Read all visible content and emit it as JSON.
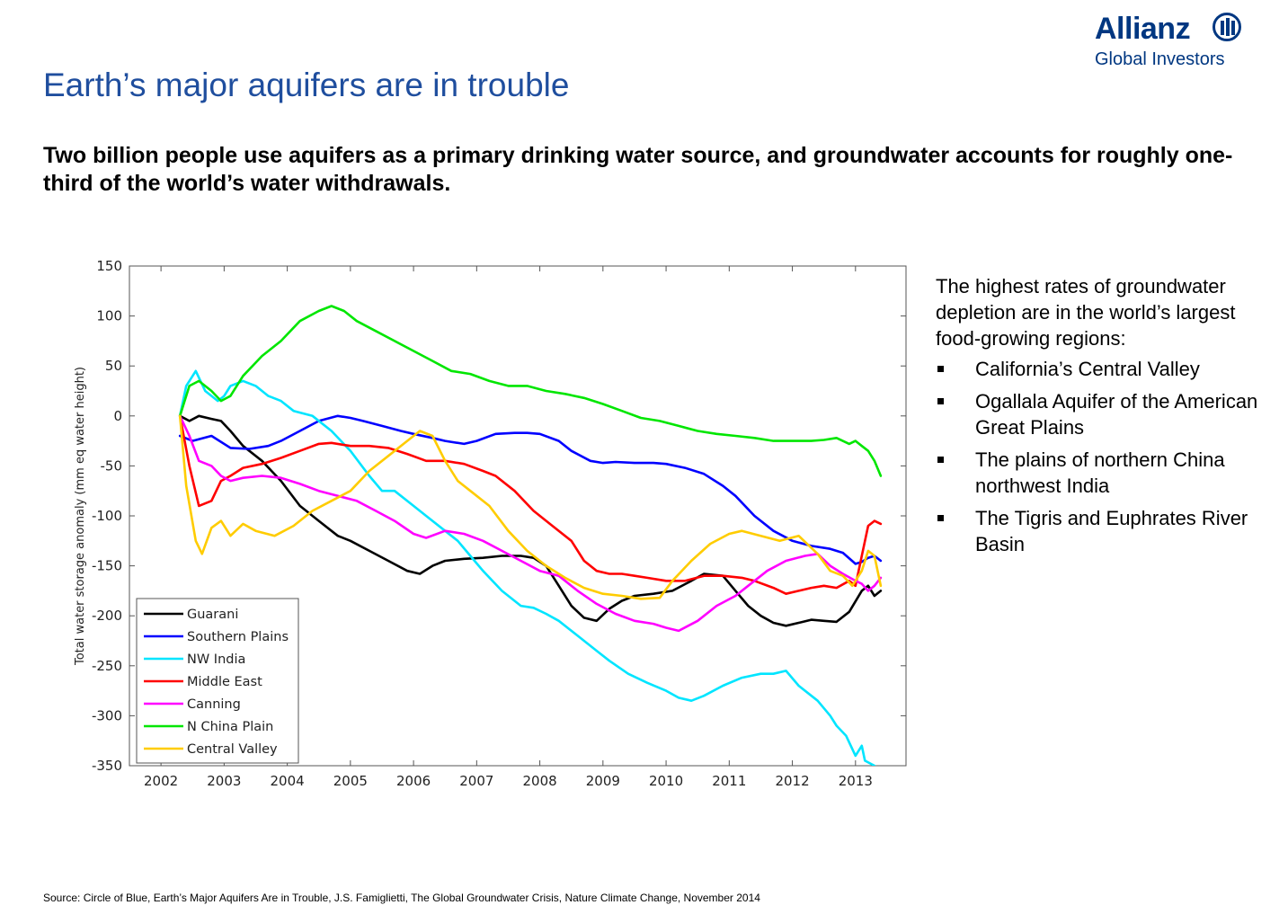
{
  "logo": {
    "brand": "Allianz",
    "sub": "Global Investors",
    "color": "#003781"
  },
  "title": "Earth’s major aquifers are in trouble",
  "subtitle": "Two billion people use aquifers as a primary drinking water source, and groundwater accounts for roughly one-third of the world’s water withdrawals.",
  "side": {
    "intro": "The highest rates of groundwater depletion are in the world’s largest food-growing regions:",
    "bullets": [
      "California’s Central Valley",
      "Ogallala Aquifer of the American Great Plains",
      "The plains of northern China northwest India",
      "The Tigris and Euphrates River Basin"
    ]
  },
  "source": "Source: Circle of Blue, Earth’s Major Aquifers Are in Trouble, J.S. Famiglietti, The Global Groundwater Crisis, Nature Climate Change, November 2014",
  "chart_data": {
    "type": "line",
    "title": "",
    "xlabel": "",
    "ylabel": "Total water storage anomaly (mm eq water height)",
    "xlim": [
      2001.5,
      2013.8
    ],
    "ylim": [
      -350,
      150
    ],
    "xticks": [
      2002,
      2003,
      2004,
      2005,
      2006,
      2007,
      2008,
      2009,
      2010,
      2011,
      2012,
      2013
    ],
    "yticks": [
      150,
      100,
      50,
      0,
      -50,
      -100,
      -150,
      -200,
      -250,
      -300,
      -350
    ],
    "grid": false,
    "legend_position": "bottom-left",
    "series": [
      {
        "name": "Guarani",
        "color": "#000000",
        "x": [
          2002.3,
          2002.45,
          2002.6,
          2002.8,
          2002.95,
          2003.1,
          2003.3,
          2003.6,
          2003.9,
          2004.2,
          2004.5,
          2004.8,
          2005.0,
          2005.3,
          2005.6,
          2005.9,
          2006.1,
          2006.3,
          2006.5,
          2006.8,
          2007.1,
          2007.4,
          2007.7,
          2007.9,
          2008.1,
          2008.3,
          2008.5,
          2008.7,
          2008.9,
          2009.1,
          2009.3,
          2009.5,
          2009.8,
          2010.1,
          2010.4,
          2010.6,
          2010.9,
          2011.1,
          2011.3,
          2011.5,
          2011.7,
          2011.9,
          2012.1,
          2012.3,
          2012.5,
          2012.7,
          2012.9,
          2013.1,
          2013.2,
          2013.3,
          2013.4
        ],
        "y": [
          0,
          -5,
          0,
          -3,
          -5,
          -15,
          -30,
          -45,
          -65,
          -90,
          -105,
          -120,
          -125,
          -135,
          -145,
          -155,
          -158,
          -150,
          -145,
          -143,
          -142,
          -140,
          -140,
          -142,
          -150,
          -170,
          -190,
          -202,
          -205,
          -193,
          -185,
          -180,
          -178,
          -175,
          -165,
          -158,
          -160,
          -175,
          -190,
          -200,
          -207,
          -210,
          -207,
          -204,
          -205,
          -206,
          -196,
          -175,
          -170,
          -180,
          -175
        ]
      },
      {
        "name": "Southern Plains",
        "color": "#0000ff",
        "x": [
          2002.3,
          2002.5,
          2002.8,
          2003.1,
          2003.4,
          2003.7,
          2003.9,
          2004.2,
          2004.5,
          2004.8,
          2005.0,
          2005.2,
          2005.5,
          2005.8,
          2006.0,
          2006.3,
          2006.5,
          2006.8,
          2007.0,
          2007.3,
          2007.6,
          2007.8,
          2008.0,
          2008.3,
          2008.5,
          2008.8,
          2009.0,
          2009.2,
          2009.5,
          2009.8,
          2010.0,
          2010.3,
          2010.6,
          2010.9,
          2011.1,
          2011.4,
          2011.7,
          2012.0,
          2012.3,
          2012.6,
          2012.8,
          2013.0,
          2013.1,
          2013.2,
          2013.3,
          2013.4
        ],
        "y": [
          -20,
          -25,
          -20,
          -32,
          -33,
          -30,
          -25,
          -15,
          -5,
          0,
          -2,
          -5,
          -10,
          -15,
          -18,
          -22,
          -25,
          -28,
          -25,
          -18,
          -17,
          -17,
          -18,
          -25,
          -35,
          -45,
          -47,
          -46,
          -47,
          -47,
          -48,
          -52,
          -58,
          -70,
          -80,
          -100,
          -115,
          -125,
          -130,
          -133,
          -137,
          -148,
          -146,
          -142,
          -140,
          -145
        ]
      },
      {
        "name": "NW India",
        "color": "#00e5ff",
        "x": [
          2002.3,
          2002.4,
          2002.55,
          2002.7,
          2002.9,
          2003.0,
          2003.1,
          2003.3,
          2003.5,
          2003.7,
          2003.9,
          2004.1,
          2004.4,
          2004.7,
          2005.0,
          2005.3,
          2005.5,
          2005.7,
          2006.0,
          2006.2,
          2006.5,
          2006.7,
          2006.9,
          2007.1,
          2007.4,
          2007.7,
          2007.9,
          2008.1,
          2008.3,
          2008.6,
          2008.9,
          2009.1,
          2009.4,
          2009.7,
          2010.0,
          2010.2,
          2010.4,
          2010.6,
          2010.9,
          2011.2,
          2011.5,
          2011.7,
          2011.9,
          2012.1,
          2012.4,
          2012.6,
          2012.7,
          2012.85,
          2013.0,
          2013.1,
          2013.15,
          2013.3
        ],
        "y": [
          0,
          30,
          45,
          25,
          15,
          20,
          30,
          35,
          30,
          20,
          15,
          5,
          0,
          -15,
          -35,
          -60,
          -75,
          -75,
          -90,
          -100,
          -115,
          -125,
          -140,
          -155,
          -175,
          -190,
          -192,
          -198,
          -205,
          -220,
          -235,
          -245,
          -258,
          -267,
          -275,
          -282,
          -285,
          -280,
          -270,
          -262,
          -258,
          -258,
          -255,
          -270,
          -285,
          -300,
          -310,
          -320,
          -340,
          -330,
          -345,
          -350
        ]
      },
      {
        "name": "Middle East",
        "color": "#ff0000",
        "x": [
          2002.3,
          2002.45,
          2002.6,
          2002.8,
          2002.95,
          2003.1,
          2003.3,
          2003.6,
          2003.9,
          2004.2,
          2004.5,
          2004.7,
          2005.0,
          2005.3,
          2005.6,
          2005.9,
          2006.2,
          2006.5,
          2006.8,
          2007.1,
          2007.3,
          2007.6,
          2007.9,
          2008.2,
          2008.5,
          2008.7,
          2008.9,
          2009.1,
          2009.3,
          2009.5,
          2009.7,
          2010.0,
          2010.3,
          2010.6,
          2010.9,
          2011.2,
          2011.4,
          2011.7,
          2011.9,
          2012.1,
          2012.3,
          2012.5,
          2012.7,
          2012.9,
          2013.0,
          2013.1,
          2013.2,
          2013.3,
          2013.4
        ],
        "y": [
          0,
          -50,
          -90,
          -85,
          -65,
          -60,
          -52,
          -48,
          -42,
          -35,
          -28,
          -27,
          -30,
          -30,
          -32,
          -38,
          -45,
          -45,
          -48,
          -55,
          -60,
          -75,
          -95,
          -110,
          -125,
          -145,
          -155,
          -158,
          -158,
          -160,
          -162,
          -165,
          -165,
          -160,
          -160,
          -162,
          -165,
          -172,
          -178,
          -175,
          -172,
          -170,
          -172,
          -165,
          -170,
          -140,
          -110,
          -105,
          -108
        ]
      },
      {
        "name": "Canning",
        "color": "#ff00ff",
        "x": [
          2002.3,
          2002.45,
          2002.6,
          2002.8,
          2002.95,
          2003.1,
          2003.3,
          2003.6,
          2003.9,
          2004.2,
          2004.5,
          2004.8,
          2005.1,
          2005.4,
          2005.7,
          2006.0,
          2006.2,
          2006.5,
          2006.8,
          2007.1,
          2007.4,
          2007.7,
          2008.0,
          2008.3,
          2008.6,
          2008.9,
          2009.2,
          2009.5,
          2009.8,
          2010.0,
          2010.2,
          2010.5,
          2010.8,
          2011.1,
          2011.3,
          2011.6,
          2011.9,
          2012.2,
          2012.4,
          2012.6,
          2012.8,
          2013.0,
          2013.1,
          2013.2,
          2013.3,
          2013.4
        ],
        "y": [
          0,
          -20,
          -45,
          -50,
          -60,
          -65,
          -62,
          -60,
          -62,
          -68,
          -75,
          -80,
          -85,
          -95,
          -105,
          -118,
          -122,
          -115,
          -118,
          -125,
          -135,
          -145,
          -155,
          -160,
          -175,
          -188,
          -198,
          -205,
          -208,
          -212,
          -215,
          -205,
          -190,
          -180,
          -170,
          -155,
          -145,
          -140,
          -138,
          -150,
          -158,
          -165,
          -168,
          -175,
          -170,
          -162
        ]
      },
      {
        "name": "N China Plain",
        "color": "#00e600",
        "x": [
          2002.3,
          2002.45,
          2002.6,
          2002.8,
          2002.95,
          2003.1,
          2003.3,
          2003.6,
          2003.9,
          2004.2,
          2004.5,
          2004.7,
          2004.9,
          2005.1,
          2005.4,
          2005.7,
          2006.0,
          2006.3,
          2006.6,
          2006.9,
          2007.2,
          2007.5,
          2007.8,
          2008.1,
          2008.4,
          2008.7,
          2009.0,
          2009.3,
          2009.6,
          2009.9,
          2010.2,
          2010.5,
          2010.8,
          2011.1,
          2011.4,
          2011.7,
          2012.0,
          2012.3,
          2012.5,
          2012.7,
          2012.9,
          2013.0,
          2013.1,
          2013.2,
          2013.3,
          2013.4
        ],
        "y": [
          0,
          30,
          35,
          25,
          15,
          20,
          40,
          60,
          75,
          95,
          105,
          110,
          105,
          95,
          85,
          75,
          65,
          55,
          45,
          42,
          35,
          30,
          30,
          25,
          22,
          18,
          12,
          5,
          -2,
          -5,
          -10,
          -15,
          -18,
          -20,
          -22,
          -25,
          -25,
          -25,
          -24,
          -22,
          -28,
          -25,
          -30,
          -35,
          -45,
          -60
        ]
      },
      {
        "name": "Central Valley",
        "color": "#ffcc00",
        "x": [
          2002.3,
          2002.4,
          2002.55,
          2002.65,
          2002.8,
          2002.95,
          2003.1,
          2003.3,
          2003.5,
          2003.8,
          2004.1,
          2004.4,
          2004.7,
          2005.0,
          2005.3,
          2005.6,
          2005.9,
          2006.1,
          2006.3,
          2006.5,
          2006.7,
          2006.9,
          2007.2,
          2007.5,
          2007.8,
          2008.1,
          2008.4,
          2008.7,
          2009.0,
          2009.3,
          2009.6,
          2009.9,
          2010.1,
          2010.4,
          2010.7,
          2011.0,
          2011.2,
          2011.5,
          2011.8,
          2012.1,
          2012.4,
          2012.6,
          2012.8,
          2012.95,
          2013.1,
          2013.2,
          2013.3,
          2013.4
        ],
        "y": [
          0,
          -70,
          -125,
          -138,
          -112,
          -105,
          -120,
          -108,
          -115,
          -120,
          -110,
          -95,
          -85,
          -75,
          -55,
          -40,
          -25,
          -15,
          -20,
          -45,
          -65,
          -75,
          -90,
          -115,
          -135,
          -150,
          -162,
          -172,
          -178,
          -180,
          -183,
          -182,
          -165,
          -145,
          -128,
          -118,
          -115,
          -120,
          -125,
          -120,
          -138,
          -155,
          -160,
          -170,
          -155,
          -135,
          -140,
          -170
        ]
      }
    ]
  }
}
